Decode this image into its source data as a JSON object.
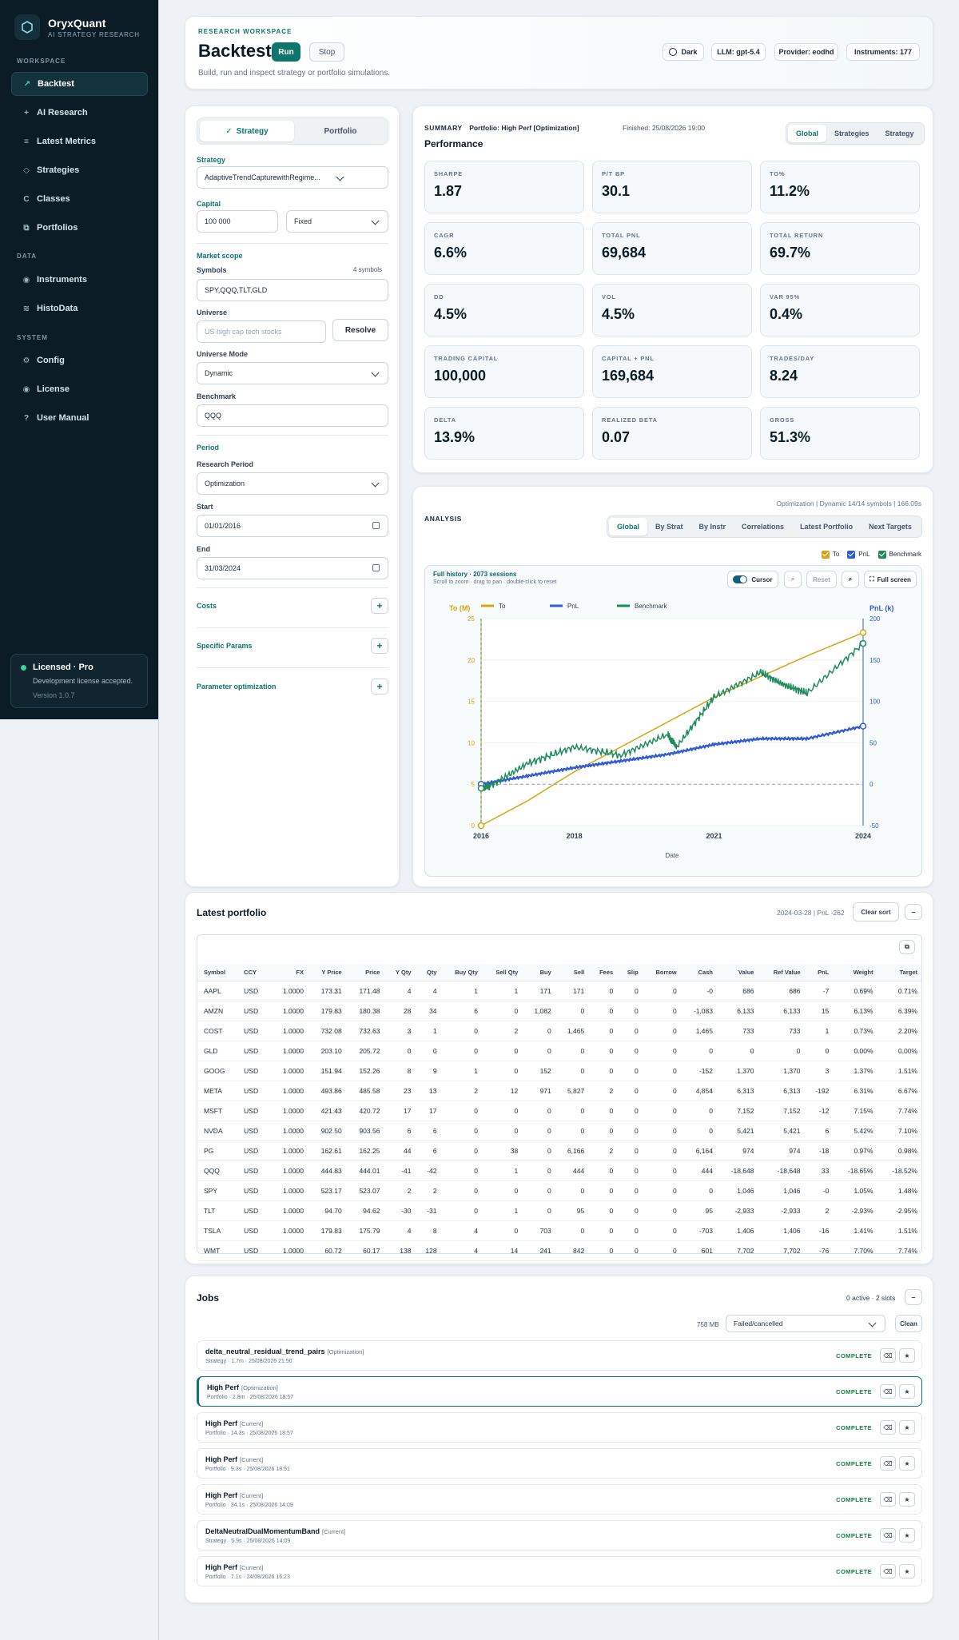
{
  "brand": {
    "name": "OryxQuant",
    "tagline": "AI STRATEGY RESEARCH"
  },
  "sidebar": {
    "sections": [
      "WORKSPACE",
      "DATA",
      "SYSTEM"
    ],
    "items": [
      {
        "label": "Backtest",
        "icon": "chart-icon"
      },
      {
        "label": "AI Research",
        "icon": "sparkle-icon"
      },
      {
        "label": "Latest Metrics",
        "icon": "list-icon"
      },
      {
        "label": "Strategies",
        "icon": "diamond-icon"
      },
      {
        "label": "Classes",
        "icon": "class-icon"
      },
      {
        "label": "Portfolios",
        "icon": "portfolio-icon"
      },
      {
        "label": "Instruments",
        "icon": "instrument-icon"
      },
      {
        "label": "HistoData",
        "icon": "data-icon"
      },
      {
        "label": "Config",
        "icon": "gear-icon"
      },
      {
        "label": "License",
        "icon": "license-icon"
      },
      {
        "label": "User Manual",
        "icon": "help-icon"
      }
    ],
    "license": {
      "title": "Licensed · Pro",
      "desc": "Development license accepted.",
      "version": "Version 1.0.7"
    }
  },
  "header": {
    "eyebrow": "RESEARCH WORKSPACE",
    "title": "Backtest",
    "run": "Run",
    "stop": "Stop",
    "subtitle": "Build, run and inspect strategy or portfolio simulations.",
    "pills": [
      "Dark",
      "LLM: gpt-5.4",
      "Provider: eodhd",
      "Instruments: 177"
    ]
  },
  "form": {
    "modes": [
      "Strategy",
      "Portfolio"
    ],
    "strategy_label": "Strategy",
    "strategy_value": "AdaptiveTrendCapturewithRegime...",
    "capital_label": "Capital",
    "capital_value": "100 000",
    "capital_mode": "Fixed",
    "market_scope": "Market scope",
    "symbols_label": "Symbols",
    "symbols_count": "4 symbols",
    "symbols_value": "SPY,QQQ,TLT,GLD",
    "universe_label": "Universe",
    "universe_placeholder": "US high cap tech stocks",
    "resolve": "Resolve",
    "universe_mode_label": "Universe Mode",
    "universe_mode": "Dynamic",
    "benchmark_label": "Benchmark",
    "benchmark_value": "QQQ",
    "period": "Period",
    "research_period_label": "Research Period",
    "research_period": "Optimization",
    "start_label": "Start",
    "start_value": "01/01/2016",
    "end_label": "End",
    "end_value": "31/03/2024",
    "costs": "Costs",
    "specific_params": "Specific Params",
    "param_opt": "Parameter optimization"
  },
  "summary": {
    "label": "SUMMARY",
    "portfolio": "Portfolio: High Perf [Optimization]",
    "finished": "Finished: 25/08/2026 19:00",
    "heading": "Performance",
    "tabs": [
      "Global",
      "Strategies",
      "Strategy"
    ],
    "kpis": [
      {
        "label": "SHARPE",
        "value": "1.87"
      },
      {
        "label": "P/T BP",
        "value": "30.1"
      },
      {
        "label": "TO%",
        "value": "11.2%"
      },
      {
        "label": "CAGR",
        "value": "6.6%"
      },
      {
        "label": "TOTAL PNL",
        "value": "69,684"
      },
      {
        "label": "TOTAL RETURN",
        "value": "69.7%"
      },
      {
        "label": "DD",
        "value": "4.5%"
      },
      {
        "label": "VOL",
        "value": "4.5%"
      },
      {
        "label": "VAR 95%",
        "value": "0.4%"
      },
      {
        "label": "TRADING CAPITAL",
        "value": "100,000"
      },
      {
        "label": "CAPITAL + PNL",
        "value": "169,684"
      },
      {
        "label": "TRADES/DAY",
        "value": "8.24"
      },
      {
        "label": "DELTA",
        "value": "13.9%"
      },
      {
        "label": "REALIZED BETA",
        "value": "0.07"
      },
      {
        "label": "GROSS",
        "value": "51.3%"
      }
    ]
  },
  "analysis": {
    "label": "ANALYSIS",
    "meta": "Optimization | Dynamic 14/14 symbols | 166.09s",
    "tabs": [
      "Global",
      "By Strat",
      "By Instr",
      "Correlations",
      "Latest Portfolio",
      "Next Targets"
    ],
    "toggles": [
      "To",
      "PnL",
      "Benchmark"
    ],
    "chart_title": "Full history · 2073 sessions",
    "chart_hint": "Scroll to zoom · drag to pan · double-click to reset",
    "tools": {
      "cursor": "Cursor",
      "reset": "Reset",
      "fullscreen": "Full screen"
    }
  },
  "chart_data": {
    "type": "line",
    "xlabel": "Date",
    "x_ticks": [
      "2016",
      "2018",
      "2021",
      "2024"
    ],
    "y_left": {
      "label": "To (M)",
      "ticks": [
        0,
        5,
        10,
        15,
        20,
        25
      ],
      "lim": [
        0,
        25
      ]
    },
    "y_right": {
      "label": "PnL (k)",
      "ticks": [
        -50,
        0,
        50,
        100,
        150,
        200
      ],
      "lim": [
        -50,
        200
      ]
    },
    "series": [
      {
        "name": "To",
        "axis": "left",
        "color": "#d4a514",
        "x": [
          2016,
          2017,
          2018,
          2019,
          2020,
          2021,
          2022,
          2023,
          2024.2
        ],
        "values": [
          0,
          3,
          6.5,
          9.5,
          12.5,
          15.5,
          18,
          20.5,
          23.3
        ]
      },
      {
        "name": "PnL",
        "axis": "right",
        "color": "#2f5bd3",
        "x": [
          2016,
          2017,
          2018,
          2019,
          2020,
          2021,
          2022,
          2023,
          2024.2
        ],
        "values": [
          0,
          10,
          20,
          28,
          36,
          48,
          55,
          55,
          70
        ]
      },
      {
        "name": "Benchmark",
        "axis": "right",
        "color": "#1f8a5b",
        "x": [
          2016,
          2016.2,
          2017,
          2018,
          2019,
          2020,
          2020.2,
          2021,
          2022,
          2022.5,
          2023,
          2024.2
        ],
        "values": [
          -5,
          -2,
          25,
          45,
          35,
          60,
          45,
          105,
          135,
          120,
          110,
          170
        ]
      }
    ]
  },
  "portfolio": {
    "title": "Latest portfolio",
    "meta": "2024-03-28 | PnL -262",
    "clear_sort": "Clear sort",
    "columns": [
      "Symbol",
      "CCY",
      "FX",
      "Y Price",
      "Price",
      "Y Qty",
      "Qty",
      "Buy Qty",
      "Sell Qty",
      "Buy",
      "Sell",
      "Fees",
      "Slip",
      "Borrow",
      "Cash",
      "Value",
      "Ref Value",
      "PnL",
      "Weight",
      "Target"
    ],
    "rows": [
      [
        "AAPL",
        "USD",
        "1.0000",
        "173.31",
        "171.48",
        "4",
        "4",
        "1",
        "1",
        "171",
        "171",
        "0",
        "0",
        "0",
        "-0",
        "686",
        "686",
        "-7",
        "0.69%",
        "0.71%"
      ],
      [
        "AMZN",
        "USD",
        "1.0000",
        "179.83",
        "180.38",
        "28",
        "34",
        "6",
        "0",
        "1,082",
        "0",
        "0",
        "0",
        "0",
        "-1,083",
        "6,133",
        "6,133",
        "15",
        "6.13%",
        "6.39%"
      ],
      [
        "COST",
        "USD",
        "1.0000",
        "732.08",
        "732.63",
        "3",
        "1",
        "0",
        "2",
        "0",
        "1,465",
        "0",
        "0",
        "0",
        "1,465",
        "733",
        "733",
        "1",
        "0.73%",
        "2.20%"
      ],
      [
        "GLD",
        "USD",
        "1.0000",
        "203.10",
        "205.72",
        "0",
        "0",
        "0",
        "0",
        "0",
        "0",
        "0",
        "0",
        "0",
        "0",
        "0",
        "0",
        "0",
        "0.00%",
        "0.00%"
      ],
      [
        "GOOG",
        "USD",
        "1.0000",
        "151.94",
        "152.26",
        "8",
        "9",
        "1",
        "0",
        "152",
        "0",
        "0",
        "0",
        "0",
        "-152",
        "1,370",
        "1,370",
        "3",
        "1.37%",
        "1.51%"
      ],
      [
        "META",
        "USD",
        "1.0000",
        "493.86",
        "485.58",
        "23",
        "13",
        "2",
        "12",
        "971",
        "5,827",
        "2",
        "0",
        "0",
        "4,854",
        "6,313",
        "6,313",
        "-192",
        "6.31%",
        "6.67%"
      ],
      [
        "MSFT",
        "USD",
        "1.0000",
        "421.43",
        "420.72",
        "17",
        "17",
        "0",
        "0",
        "0",
        "0",
        "0",
        "0",
        "0",
        "0",
        "7,152",
        "7,152",
        "-12",
        "7.15%",
        "7.74%"
      ],
      [
        "NVDA",
        "USD",
        "1.0000",
        "902.50",
        "903.56",
        "6",
        "6",
        "0",
        "0",
        "0",
        "0",
        "0",
        "0",
        "0",
        "0",
        "5,421",
        "5,421",
        "6",
        "5.42%",
        "7.10%"
      ],
      [
        "PG",
        "USD",
        "1.0000",
        "162.61",
        "162.25",
        "44",
        "6",
        "0",
        "38",
        "0",
        "6,166",
        "2",
        "0",
        "0",
        "6,164",
        "974",
        "974",
        "-18",
        "0.97%",
        "0.98%"
      ],
      [
        "QQQ",
        "USD",
        "1.0000",
        "444.83",
        "444.01",
        "-41",
        "-42",
        "0",
        "1",
        "0",
        "444",
        "0",
        "0",
        "0",
        "444",
        "-18,648",
        "-18,648",
        "33",
        "-18.65%",
        "-18.52%"
      ],
      [
        "SPY",
        "USD",
        "1.0000",
        "523.17",
        "523.07",
        "2",
        "2",
        "0",
        "0",
        "0",
        "0",
        "0",
        "0",
        "0",
        "0",
        "1,046",
        "1,046",
        "-0",
        "1.05%",
        "1.48%"
      ],
      [
        "TLT",
        "USD",
        "1.0000",
        "94.70",
        "94.62",
        "-30",
        "-31",
        "0",
        "1",
        "0",
        "95",
        "0",
        "0",
        "0",
        "95",
        "-2,933",
        "-2,933",
        "2",
        "-2.93%",
        "-2.95%"
      ],
      [
        "TSLA",
        "USD",
        "1.0000",
        "179.83",
        "175.79",
        "4",
        "8",
        "4",
        "0",
        "703",
        "0",
        "0",
        "0",
        "0",
        "-703",
        "1,406",
        "1,406",
        "-16",
        "1.41%",
        "1.51%"
      ],
      [
        "WMT",
        "USD",
        "1.0000",
        "60.72",
        "60.17",
        "138",
        "128",
        "4",
        "14",
        "241",
        "842",
        "0",
        "0",
        "0",
        "601",
        "7,702",
        "7,702",
        "-76",
        "7.70%",
        "7.74%"
      ]
    ]
  },
  "jobs": {
    "title": "Jobs",
    "status": "0 active · 2 slots",
    "mem": "758 MB",
    "filter": "Failed/cancelled",
    "clean": "Clean",
    "items": [
      {
        "name": "delta_neutral_residual_trend_pairs",
        "tag": "[Optimization]",
        "meta": "Strategy · 1.7m · 25/08/2026 21:50",
        "status": "COMPLETE"
      },
      {
        "name": "High Perf",
        "tag": "[Optimization]",
        "meta": "Portfolio · 2.8m · 25/08/2026 18:57",
        "status": "COMPLETE"
      },
      {
        "name": "High Perf",
        "tag": "[Current]",
        "meta": "Portfolio · 14.3s · 25/08/2026 18:57",
        "status": "COMPLETE"
      },
      {
        "name": "High Perf",
        "tag": "[Current]",
        "meta": "Portfolio · 9.3s · 25/08/2026 18:51",
        "status": "COMPLETE"
      },
      {
        "name": "High Perf",
        "tag": "[Current]",
        "meta": "Portfolio · 34.1s · 25/08/2026 14:09",
        "status": "COMPLETE"
      },
      {
        "name": "DeltaNeutralDualMomentumBand",
        "tag": "[Current]",
        "meta": "Strategy · 5.9s · 25/08/2026 14:09",
        "status": "COMPLETE"
      },
      {
        "name": "High Perf",
        "tag": "[Current]",
        "meta": "Portfolio · 7.1s · 24/08/2026 16:23",
        "status": "COMPLETE"
      }
    ]
  }
}
